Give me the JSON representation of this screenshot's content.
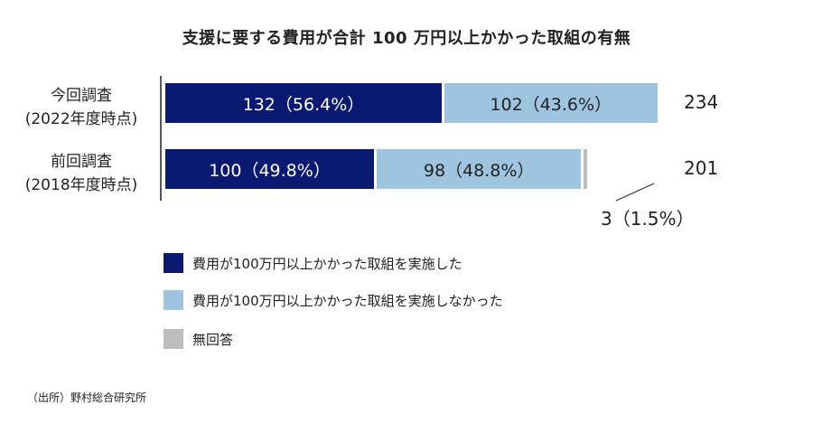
{
  "title": "支援に要する費用が合計 100 万円以上かかった取組の有無",
  "colors": {
    "series_over_100": "#0a1a73",
    "series_under_100": "#9fc4df",
    "series_no_answer": "#bdbdbd"
  },
  "chart_data": {
    "type": "bar",
    "orientation": "horizontal",
    "stacked": true,
    "categories": [
      "今回調査\n(2022年度時点)",
      "前回調査\n(2018年度時点)"
    ],
    "series": [
      {
        "name": "費用が100万円以上かかった取組を実施した",
        "values": [
          132,
          100
        ],
        "labels": [
          "132（56.4%）",
          "100（49.8%）"
        ]
      },
      {
        "name": "費用が100万円以上かかった取組を実施しなかった",
        "values": [
          102,
          98
        ],
        "labels": [
          "102（43.6%）",
          "98（48.8%）"
        ]
      },
      {
        "name": "無回答",
        "values": [
          0,
          3
        ],
        "labels": [
          "",
          "3（1.5%）"
        ]
      }
    ],
    "totals": [
      "234",
      "201"
    ],
    "legend_position": "bottom-left"
  },
  "rows": [
    {
      "label_line1": "今回調査",
      "label_line2": "(2022年度時点)"
    },
    {
      "label_line1": "前回調査",
      "label_line2": "(2018年度時点)"
    }
  ],
  "legend": [
    {
      "label": "費用が100万円以上かかった取組を実施した"
    },
    {
      "label": "費用が100万円以上かかった取組を実施しなかった"
    },
    {
      "label": "無回答"
    }
  ],
  "source": "（出所）野村総合研究所"
}
